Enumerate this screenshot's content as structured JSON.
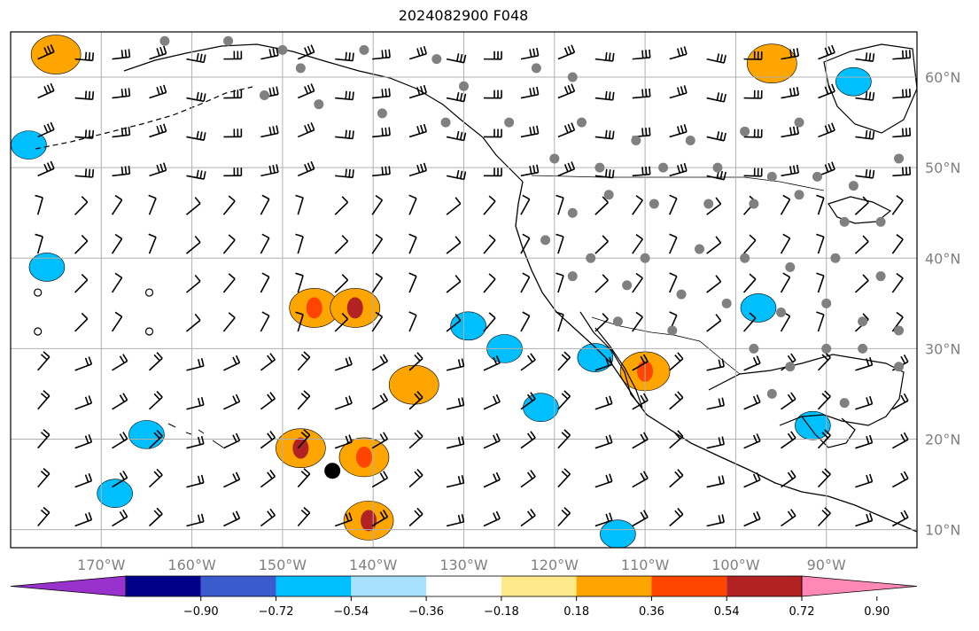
{
  "title": "2024082900 F048",
  "map": {
    "lon_range": [
      -180,
      -80
    ],
    "lat_range": [
      8,
      65
    ],
    "grid_lons": [
      -170,
      -160,
      -150,
      -140,
      -130,
      -120,
      -110,
      -100,
      -90
    ],
    "grid_lats": [
      10,
      20,
      30,
      40,
      50,
      60
    ],
    "lon_labels": [
      "170°W",
      "160°W",
      "150°W",
      "140°W",
      "130°W",
      "120°W",
      "110°W",
      "100°W",
      "90°W"
    ],
    "lat_labels": [
      "10°N",
      "20°N",
      "30°N",
      "40°N",
      "50°N",
      "60°N"
    ],
    "gridlines": "on",
    "colors": {
      "gridline": "#b0b0b0",
      "coast": "#000000",
      "station": "#808080",
      "barb": "#000000"
    }
  },
  "colorbar": {
    "ticks": [
      "−0.90",
      "−0.72",
      "−0.54",
      "−0.36",
      "−0.18",
      "0.18",
      "0.36",
      "0.54",
      "0.72",
      "0.90"
    ],
    "bins": [
      "#9932cc",
      "#00008b",
      "#3a5bcd",
      "#00bfff",
      "#a8e0ff",
      "#ffffff",
      "#fde98a",
      "#ffa500",
      "#ff4500",
      "#b22222",
      "#ff88b4"
    ]
  },
  "features": {
    "storm_marker": {
      "lon": -144.5,
      "lat": 16.5
    },
    "positive_regions": [
      {
        "lon": -146.5,
        "lat": 34.5,
        "level": "0.36",
        "core": "0.54"
      },
      {
        "lon": -142.0,
        "lat": 34.5,
        "level": "0.36",
        "core": "0.72"
      },
      {
        "lon": -148.0,
        "lat": 19.0,
        "level": "0.36",
        "core": "0.72"
      },
      {
        "lon": -141.0,
        "lat": 18.0,
        "level": "0.36",
        "core": "0.54"
      },
      {
        "lon": -140.5,
        "lat": 11.0,
        "level": "0.36",
        "core": "0.72"
      },
      {
        "lon": -135.5,
        "lat": 26.0,
        "level": "0.36",
        "core": "0.36"
      },
      {
        "lon": -175.0,
        "lat": 62.5,
        "level": "0.36",
        "core": "0.36"
      },
      {
        "lon": -96.0,
        "lat": 61.5,
        "level": "0.36",
        "core": "0.36"
      },
      {
        "lon": -110.0,
        "lat": 27.5,
        "level": "0.36",
        "core": "0.54"
      }
    ],
    "negative_regions": [
      {
        "lon": -129.5,
        "lat": 32.5,
        "level": "-0.36"
      },
      {
        "lon": -125.5,
        "lat": 30.0,
        "level": "-0.36"
      },
      {
        "lon": -165.0,
        "lat": 20.5,
        "level": "-0.36"
      },
      {
        "lon": -168.5,
        "lat": 14.0,
        "level": "-0.36"
      },
      {
        "lon": -87.0,
        "lat": 59.5,
        "level": "-0.54"
      },
      {
        "lon": -91.5,
        "lat": 21.5,
        "level": "-0.54"
      },
      {
        "lon": -113.0,
        "lat": 9.5,
        "level": "-0.36"
      },
      {
        "lon": -121.5,
        "lat": 23.5,
        "level": "-0.36"
      },
      {
        "lon": -115.5,
        "lat": 29.0,
        "level": "-0.36"
      },
      {
        "lon": -97.5,
        "lat": 34.5,
        "level": "-0.36"
      },
      {
        "lon": -176.0,
        "lat": 39.0,
        "level": "-0.36"
      },
      {
        "lon": -178.0,
        "lat": 52.5,
        "level": "-0.36"
      }
    ]
  }
}
